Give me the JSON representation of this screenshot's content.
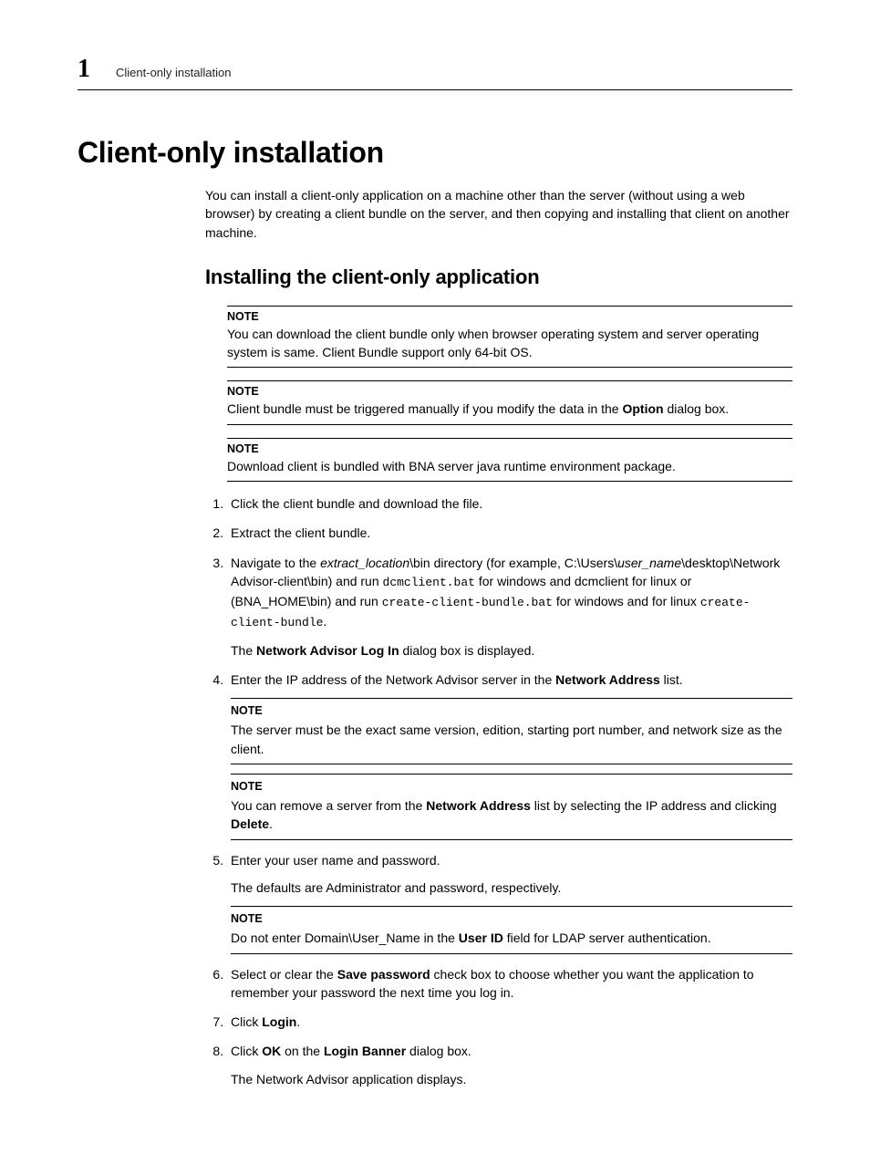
{
  "header": {
    "chapter_number": "1",
    "running_head": "Client-only installation"
  },
  "title": "Client-only installation",
  "intro": "You can install a client-only application on a machine other than the server (without using a web browser) by creating a client bundle on the server, and then copying and installing that client on another machine.",
  "subtitle": "Installing the client-only application",
  "note_label": "NOTE",
  "notes_top": [
    "You can download the client bundle only when browser operating system and server operating system is same. Client Bundle support only 64-bit OS.",
    {
      "pre": "Client bundle must be triggered manually if you modify the data in the ",
      "bold": "Option",
      "post": " dialog box."
    },
    "Download client is bundled with BNA server java runtime environment package."
  ],
  "steps": {
    "s1": "Click the client bundle and download the file.",
    "s2": "Extract the client bundle.",
    "s3": {
      "a": "Navigate to the ",
      "b_it": "extract_location",
      "c": "\\bin directory (for example, C:\\Users\\",
      "d_it": "user_name",
      "e": "\\desktop\\Network Advisor-client\\bin) and run ",
      "f_mono": "dcmclient.bat",
      "g": " for windows and dcmclient for linux or (BNA_HOME\\bin) and run ",
      "h_mono": "create-client-bundle.bat",
      "i": " for windows and for linux ",
      "j_mono": "create-client-bundle",
      "k": ".",
      "sub_a": "The ",
      "sub_b_bold": "Network Advisor Log In",
      "sub_c": " dialog box is displayed."
    },
    "s4": {
      "a": "Enter the IP address of the Network Advisor server in the ",
      "b_bold": "Network Address",
      "c": " list.",
      "note1": "The server must be the exact same version, edition, starting port number, and network size as the client.",
      "note2_a": "You can remove a server from the ",
      "note2_b_bold": "Network Address",
      "note2_c": " list by selecting the IP address and clicking ",
      "note2_d_bold": "Delete",
      "note2_e": "."
    },
    "s5": {
      "a": "Enter your user name and password.",
      "sub": "The defaults are Administrator and password, respectively.",
      "note_a": "Do not enter Domain\\User_Name in the ",
      "note_b_bold": "User ID",
      "note_c": " field for LDAP server authentication."
    },
    "s6": {
      "a": "Select or clear the ",
      "b_bold": "Save password",
      "c": " check box to choose whether you want the application to remember your password the next time you log in."
    },
    "s7": {
      "a": "Click ",
      "b_bold": "Login",
      "c": "."
    },
    "s8": {
      "a": "Click ",
      "b_bold": "OK",
      "c": " on the ",
      "d_bold": "Login Banner",
      "e": " dialog box.",
      "sub": "The Network Advisor application displays."
    }
  }
}
